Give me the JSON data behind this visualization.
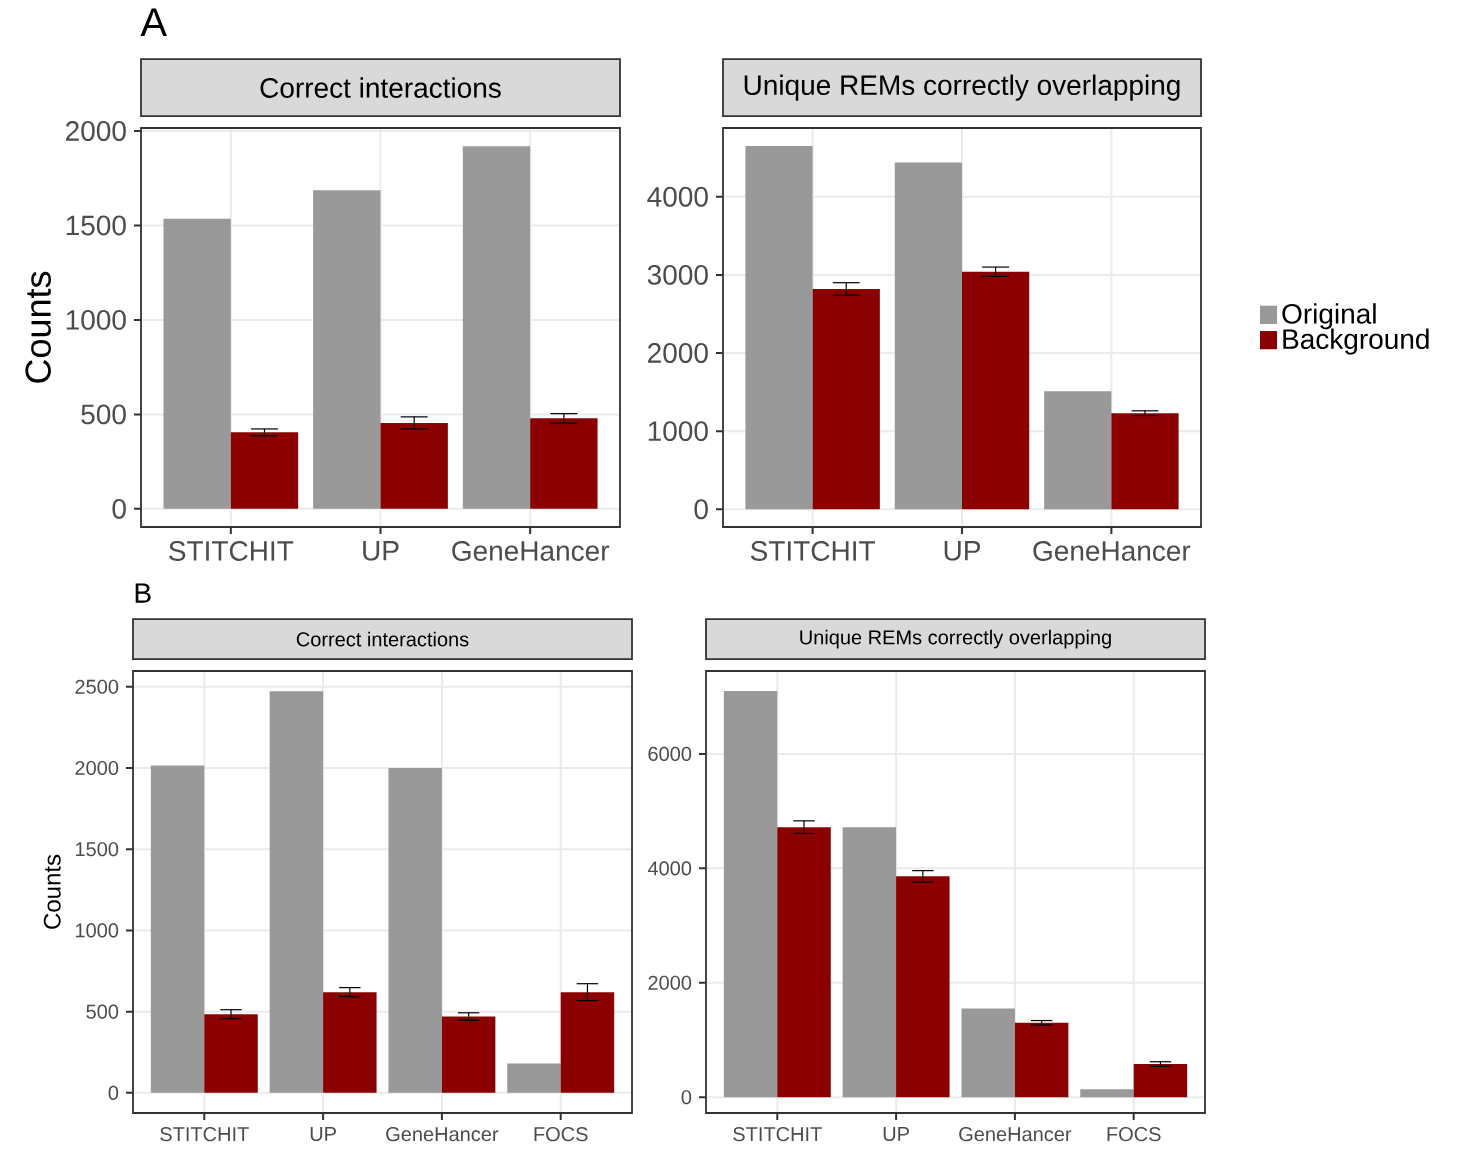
{
  "chart_data": [
    {
      "type": "bar",
      "title": "Correct interactions",
      "ylabel": "Counts",
      "annotations": [
        "A"
      ],
      "categories": [
        "STITCHIT",
        "UP",
        "GeneHancer"
      ],
      "series": [
        {
          "color": "#999999",
          "values": [
            1535,
            1687,
            1920
          ]
        },
        {
          "color": "#8b0000",
          "values": [
            405,
            455,
            479
          ],
          "errors": [
            18,
            32,
            25
          ]
        }
      ],
      "ylim": [
        -96,
        2016
      ],
      "yticks": [
        0,
        500,
        1000,
        1500,
        2000
      ],
      "grid": true,
      "legend": false
    },
    {
      "type": "bar",
      "title": "Unique REMs correctly overlapping",
      "categories": [
        "STITCHIT",
        "UP",
        "GeneHancer"
      ],
      "series": [
        {
          "name": "Original",
          "color": "#999999",
          "values": [
            4650,
            4440,
            1510
          ]
        },
        {
          "name": "Background",
          "color": "#8b0000",
          "values": [
            2820,
            3040,
            1230
          ],
          "errors": [
            80,
            60,
            30
          ]
        }
      ],
      "ylim": [
        -227,
        4880
      ],
      "yticks": [
        0,
        1000,
        2000,
        3000,
        4000
      ],
      "grid": true,
      "legend": "right"
    },
    {
      "type": "bar",
      "title": "Correct interactions",
      "ylabel": "Counts",
      "annotations": [
        "B"
      ],
      "categories": [
        "STITCHIT",
        "UP",
        "GeneHancer",
        "FOCS"
      ],
      "series": [
        {
          "color": "#999999",
          "values": [
            2015,
            2473,
            2000,
            180
          ]
        },
        {
          "color": "#8b0000",
          "values": [
            484,
            620,
            470,
            620
          ],
          "errors": [
            28,
            28,
            23,
            52
          ]
        }
      ],
      "ylim": [
        -124,
        2597
      ],
      "yticks": [
        0,
        500,
        1000,
        1500,
        2000,
        2500
      ],
      "grid": true,
      "legend": false
    },
    {
      "type": "bar",
      "title": "Unique REMs correctly overlapping",
      "categories": [
        "STITCHIT",
        "UP",
        "GeneHancer",
        "FOCS"
      ],
      "series": [
        {
          "color": "#999999",
          "values": [
            7100,
            4720,
            1550,
            140
          ]
        },
        {
          "color": "#8b0000",
          "values": [
            4720,
            3860,
            1300,
            580
          ],
          "errors": [
            110,
            100,
            40,
            40
          ]
        }
      ],
      "ylim": [
        -276,
        7449
      ],
      "yticks": [
        0,
        2000,
        4000,
        6000
      ],
      "grid": true,
      "legend": false
    }
  ]
}
